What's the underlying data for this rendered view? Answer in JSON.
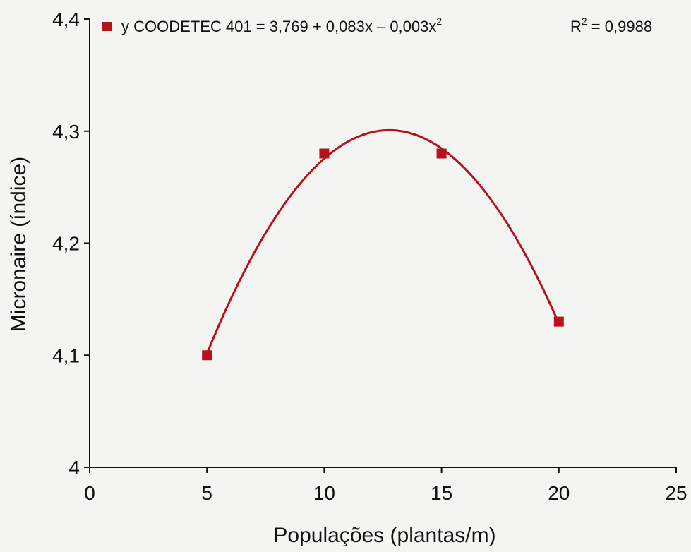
{
  "chart_data": {
    "type": "scatter",
    "xlabel": "Populações (plantas/m)",
    "ylabel": "Micronaire (índice)",
    "xlim": [
      0,
      25
    ],
    "ylim": [
      4.0,
      4.4
    ],
    "x_ticks": [
      0,
      5,
      10,
      15,
      20,
      25
    ],
    "x_tick_labels": [
      "0",
      "5",
      "10",
      "15",
      "20",
      "25"
    ],
    "y_ticks": [
      4.0,
      4.1,
      4.2,
      4.3,
      4.4
    ],
    "y_tick_labels": [
      "4",
      "4,1",
      "4,2",
      "4,3",
      "4,4"
    ],
    "grid": false,
    "legend_position": "top",
    "series": [
      {
        "name": "COODETEC 401",
        "color": "#b5121b",
        "marker": "square",
        "x": [
          5,
          10,
          15,
          20
        ],
        "y": [
          4.1,
          4.28,
          4.28,
          4.13
        ]
      }
    ],
    "trendline": {
      "color": "#b5121b",
      "coefficients": [
        3.769,
        0.083,
        -0.003
      ],
      "legend_prefix": "y COODETEC 401 = 3,769 + 0,083x – 0,003x",
      "legend_power": "2",
      "r2_prefix": "R",
      "r2_power": "2",
      "r2_value": " = 0,9988"
    }
  }
}
